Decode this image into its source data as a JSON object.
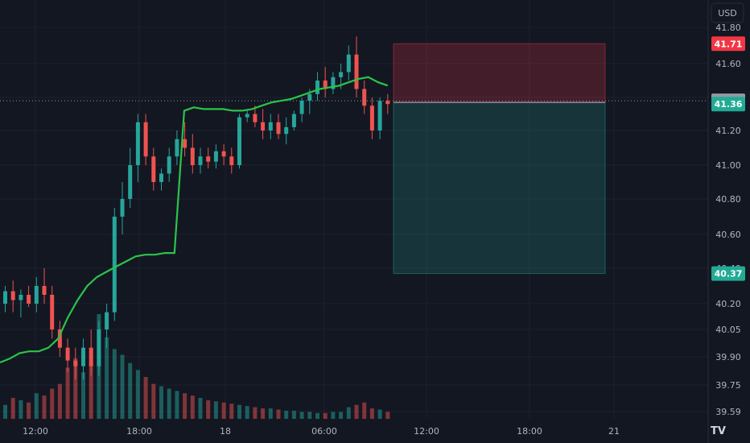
{
  "chart_data": {
    "type": "candlestick",
    "currency": "USD",
    "y_axis": {
      "ticks": [
        "41.80",
        "41.60",
        "41.40",
        "41.20",
        "41.00",
        "40.80",
        "40.60",
        "40.40",
        "40.20",
        "40.05",
        "39.90",
        "39.75",
        "39.59"
      ]
    },
    "x_axis": {
      "ticks": [
        "12:00",
        "18:00",
        "18",
        "06:00",
        "12:00",
        "18:00",
        "21"
      ]
    },
    "price_tags": [
      {
        "label": "41.71",
        "value": 41.71,
        "role": "stop-loss",
        "color": "#f23645"
      },
      {
        "label": "41.38",
        "value": 41.38,
        "role": "crosshair",
        "color": "#9598a1"
      },
      {
        "label": "41.36",
        "value": 41.36,
        "role": "last-price",
        "color": "#22ab94"
      },
      {
        "label": "40.37",
        "value": 40.37,
        "role": "take-profit",
        "color": "#22ab94"
      }
    ],
    "position": {
      "side": "short",
      "entry": 41.37,
      "stop": 41.71,
      "target": 40.37
    },
    "colors": {
      "up": "#26a69a",
      "down": "#ef5350",
      "vwap": "#2bc44a",
      "crosshair": "#9598a1"
    },
    "vwap": [
      39.87,
      39.89,
      39.92,
      39.93,
      39.93,
      39.95,
      40.0,
      40.12,
      40.22,
      40.3,
      40.35,
      40.38,
      40.41,
      40.44,
      40.47,
      40.48,
      40.48,
      40.49,
      40.49,
      41.32,
      41.34,
      41.33,
      41.33,
      41.33,
      41.32,
      41.32,
      41.33,
      41.35,
      41.37,
      41.38,
      41.39,
      41.41,
      41.43,
      41.45,
      41.46,
      41.47,
      41.49,
      41.51,
      41.52,
      41.49,
      41.47
    ],
    "candles": [
      [
        40.2,
        40.3,
        40.15,
        40.27
      ],
      [
        40.27,
        40.33,
        40.15,
        40.22
      ],
      [
        40.22,
        40.28,
        40.12,
        40.25
      ],
      [
        40.25,
        40.3,
        40.18,
        40.2
      ],
      [
        40.2,
        40.35,
        40.15,
        40.3
      ],
      [
        40.3,
        40.4,
        40.2,
        40.25
      ],
      [
        40.25,
        40.3,
        40.0,
        40.05
      ],
      [
        40.05,
        40.1,
        39.9,
        39.95
      ],
      [
        39.95,
        40.0,
        39.82,
        39.88
      ],
      [
        39.88,
        39.95,
        39.78,
        39.85
      ],
      [
        39.85,
        40.0,
        39.78,
        39.95
      ],
      [
        39.95,
        40.05,
        39.8,
        39.85
      ],
      [
        39.85,
        40.1,
        39.8,
        40.05
      ],
      [
        40.05,
        40.2,
        39.95,
        40.15
      ],
      [
        40.15,
        40.75,
        40.1,
        40.7
      ],
      [
        40.7,
        40.9,
        40.6,
        40.8
      ],
      [
        40.8,
        41.1,
        40.75,
        41.0
      ],
      [
        41.0,
        41.3,
        40.9,
        41.25
      ],
      [
        41.25,
        41.3,
        41.0,
        41.05
      ],
      [
        41.05,
        41.1,
        40.85,
        40.9
      ],
      [
        40.9,
        40.98,
        40.85,
        40.95
      ],
      [
        40.95,
        41.1,
        40.9,
        41.05
      ],
      [
        41.05,
        41.2,
        41.0,
        41.15
      ],
      [
        41.15,
        41.25,
        41.05,
        41.1
      ],
      [
        41.1,
        41.18,
        40.95,
        41.0
      ],
      [
        41.0,
        41.1,
        40.95,
        41.05
      ],
      [
        41.05,
        41.1,
        40.98,
        41.02
      ],
      [
        41.02,
        41.12,
        40.98,
        41.08
      ],
      [
        41.08,
        41.12,
        41.0,
        41.05
      ],
      [
        41.05,
        41.1,
        40.95,
        41.0
      ],
      [
        41.0,
        41.3,
        40.98,
        41.28
      ],
      [
        41.28,
        41.33,
        41.25,
        41.3
      ],
      [
        41.3,
        41.35,
        41.22,
        41.25
      ],
      [
        41.25,
        41.33,
        41.15,
        41.2
      ],
      [
        41.2,
        41.3,
        41.15,
        41.25
      ],
      [
        41.25,
        41.3,
        41.15,
        41.18
      ],
      [
        41.18,
        41.28,
        41.12,
        41.22
      ],
      [
        41.22,
        41.32,
        41.2,
        41.3
      ],
      [
        41.3,
        41.4,
        41.25,
        41.38
      ],
      [
        41.38,
        41.45,
        41.3,
        41.42
      ],
      [
        41.42,
        41.55,
        41.38,
        41.5
      ],
      [
        41.5,
        41.58,
        41.4,
        41.45
      ],
      [
        41.45,
        41.55,
        41.42,
        41.52
      ],
      [
        41.52,
        41.6,
        41.45,
        41.55
      ],
      [
        41.55,
        41.7,
        41.5,
        41.65
      ],
      [
        41.65,
        41.75,
        41.4,
        41.45
      ],
      [
        41.45,
        41.5,
        41.3,
        41.35
      ],
      [
        41.35,
        41.4,
        41.15,
        41.2
      ],
      [
        41.2,
        41.4,
        41.15,
        41.38
      ],
      [
        41.38,
        41.42,
        41.3,
        41.36
      ]
    ],
    "volume": [
      12,
      18,
      16,
      14,
      22,
      20,
      26,
      30,
      44,
      52,
      40,
      48,
      90,
      70,
      60,
      55,
      48,
      42,
      36,
      30,
      28,
      26,
      24,
      22,
      20,
      18,
      16,
      15,
      14,
      13,
      12,
      11,
      10,
      9,
      9,
      8,
      7,
      7,
      6,
      6,
      5,
      5,
      6,
      6,
      10,
      12,
      14,
      9,
      8,
      6
    ]
  }
}
